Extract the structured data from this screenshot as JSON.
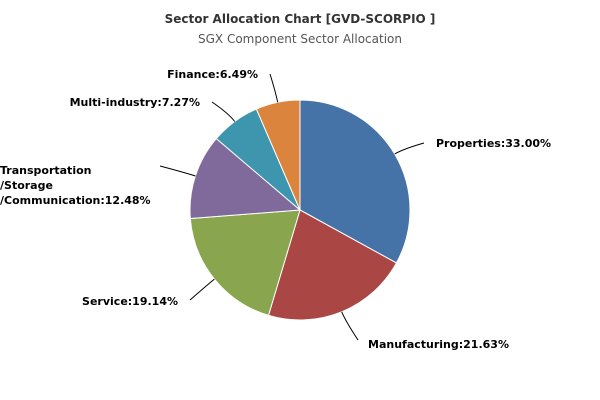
{
  "chart_data": {
    "type": "pie",
    "title": "Sector Allocation Chart [GVD-SCORPIO ]",
    "subtitle": "SGX Component Sector Allocation",
    "legend": "none",
    "slices": [
      {
        "label": "Properties",
        "value": 33.0,
        "display": "Properties:33.00%",
        "color": "#4572a7"
      },
      {
        "label": "Manufacturing",
        "value": 21.63,
        "display": "Manufacturing:21.63%",
        "color": "#aa4643"
      },
      {
        "label": "Service",
        "value": 19.14,
        "display": "Service:19.14%",
        "color": "#89a54e"
      },
      {
        "label": "Transportation /Storage /Communication",
        "value": 12.48,
        "display": [
          "Transportation",
          "/Storage",
          "/Communication:12.48%"
        ],
        "color": "#80699b"
      },
      {
        "label": "Multi-industry",
        "value": 7.27,
        "display": "Multi-industry:7.27%",
        "color": "#3d96ae"
      },
      {
        "label": "Finance",
        "value": 6.49,
        "display": "Finance:6.49%",
        "color": "#db843d"
      }
    ]
  }
}
